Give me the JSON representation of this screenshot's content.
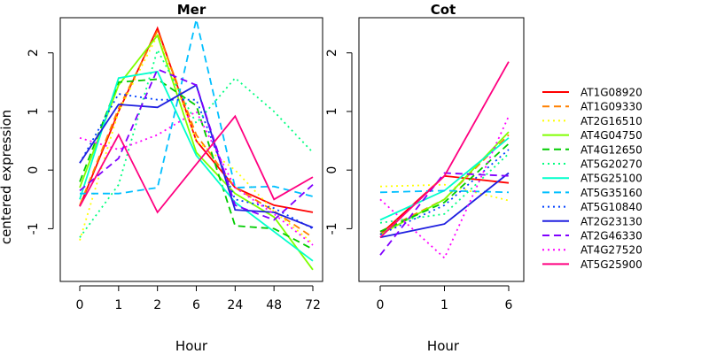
{
  "chart_data": [
    {
      "type": "line",
      "title": "Mer",
      "xlabel": "Hour",
      "ylabel": "centered expression",
      "categories": [
        "0",
        "1",
        "2",
        "6",
        "24",
        "48",
        "72"
      ],
      "ylim": [
        -1.9,
        2.6
      ],
      "yticks": [
        "-1",
        "0",
        "1",
        "2"
      ],
      "grid": false,
      "series": [
        {
          "name": "AT1G08920",
          "values": [
            -0.62,
            1.0,
            2.42,
            0.5,
            -0.3,
            -0.6,
            -0.72
          ]
        },
        {
          "name": "AT1G09330",
          "values": [
            -0.6,
            1.05,
            2.38,
            0.6,
            -0.3,
            -0.7,
            -1.15
          ]
        },
        {
          "name": "AT2G16510",
          "values": [
            -1.2,
            1.0,
            2.3,
            0.5,
            0.0,
            -0.7,
            -1.25
          ]
        },
        {
          "name": "AT4G04750",
          "values": [
            -0.3,
            1.45,
            2.3,
            0.3,
            -0.4,
            -0.8,
            -1.7
          ]
        },
        {
          "name": "AT4G12650",
          "values": [
            -0.2,
            1.5,
            1.55,
            1.1,
            -0.95,
            -1.0,
            -1.35
          ]
        },
        {
          "name": "AT5G20270",
          "values": [
            -1.15,
            -0.25,
            2.05,
            0.8,
            1.57,
            1.0,
            0.3
          ]
        },
        {
          "name": "AT5G25100",
          "values": [
            -0.5,
            1.57,
            1.68,
            0.25,
            -0.55,
            -1.05,
            -1.55
          ]
        },
        {
          "name": "AT5G35160",
          "values": [
            -0.4,
            -0.4,
            -0.3,
            2.57,
            -0.3,
            -0.28,
            -0.45
          ]
        },
        {
          "name": "AT5G10840",
          "values": [
            0.12,
            1.3,
            1.2,
            1.2,
            -0.5,
            -0.65,
            -1.0
          ]
        },
        {
          "name": "AT2G23130",
          "values": [
            0.12,
            1.12,
            1.07,
            1.45,
            -0.68,
            -0.72,
            -0.98
          ]
        },
        {
          "name": "AT2G46330",
          "values": [
            -0.35,
            0.2,
            1.72,
            1.45,
            -0.6,
            -0.85,
            -0.25
          ]
        },
        {
          "name": "AT4G27520",
          "values": [
            0.55,
            0.35,
            0.6,
            1.0,
            -0.3,
            -0.75,
            -1.28
          ]
        },
        {
          "name": "AT5G25900",
          "values": [
            -0.62,
            0.6,
            -0.72,
            0.1,
            0.92,
            -0.5,
            -0.12
          ]
        }
      ]
    },
    {
      "type": "line",
      "title": "Cot",
      "xlabel": "Hour",
      "ylabel": "",
      "categories": [
        "0",
        "1",
        "6"
      ],
      "ylim": [
        -1.9,
        2.6
      ],
      "yticks": [
        "-1",
        "0",
        "1",
        "2"
      ],
      "grid": false,
      "series": [
        {
          "name": "AT1G08920",
          "values": [
            -1.1,
            -0.1,
            -0.22
          ]
        },
        {
          "name": "AT1G09330",
          "values": [
            -1.05,
            -0.5,
            0.6
          ]
        },
        {
          "name": "AT2G16510",
          "values": [
            -0.28,
            -0.25,
            -0.52
          ]
        },
        {
          "name": "AT4G04750",
          "values": [
            -1.1,
            -0.5,
            0.65
          ]
        },
        {
          "name": "AT4G12650",
          "values": [
            -1.05,
            -0.55,
            0.45
          ]
        },
        {
          "name": "AT5G20270",
          "values": [
            -0.9,
            -0.75,
            0.28
          ]
        },
        {
          "name": "AT5G25100",
          "values": [
            -0.85,
            -0.35,
            0.55
          ]
        },
        {
          "name": "AT5G35160",
          "values": [
            -0.38,
            -0.35,
            -0.38
          ]
        },
        {
          "name": "AT5G10840",
          "values": [
            -1.1,
            -0.6,
            0.35
          ]
        },
        {
          "name": "AT2G23130",
          "values": [
            -1.15,
            -0.92,
            -0.05
          ]
        },
        {
          "name": "AT2G46330",
          "values": [
            -1.45,
            -0.05,
            -0.1
          ]
        },
        {
          "name": "AT4G27520",
          "values": [
            -0.5,
            -1.5,
            0.92
          ]
        },
        {
          "name": "AT5G25900",
          "values": [
            -1.15,
            -0.1,
            1.85
          ]
        }
      ]
    }
  ],
  "legend": {
    "placement": "right",
    "items": [
      {
        "label": "AT1G08920",
        "color": "#ff0000",
        "dash": "solid"
      },
      {
        "label": "AT1G09330",
        "color": "#ff8000",
        "dash": "dashed"
      },
      {
        "label": "AT2G16510",
        "color": "#ffff00",
        "dash": "dotted"
      },
      {
        "label": "AT4G04750",
        "color": "#80ff00",
        "dash": "solid"
      },
      {
        "label": "AT4G12650",
        "color": "#00cc00",
        "dash": "dashed"
      },
      {
        "label": "AT5G20270",
        "color": "#00ff80",
        "dash": "dotted"
      },
      {
        "label": "AT5G25100",
        "color": "#00ffcc",
        "dash": "solid"
      },
      {
        "label": "AT5G35160",
        "color": "#00bfff",
        "dash": "dashed"
      },
      {
        "label": "AT5G10840",
        "color": "#0040ff",
        "dash": "dotted"
      },
      {
        "label": "AT2G23130",
        "color": "#2020e0",
        "dash": "solid"
      },
      {
        "label": "AT2G46330",
        "color": "#8000ff",
        "dash": "dashed"
      },
      {
        "label": "AT4G27520",
        "color": "#ff00ff",
        "dash": "dotted"
      },
      {
        "label": "AT5G25900",
        "color": "#ff0080",
        "dash": "solid"
      }
    ]
  }
}
